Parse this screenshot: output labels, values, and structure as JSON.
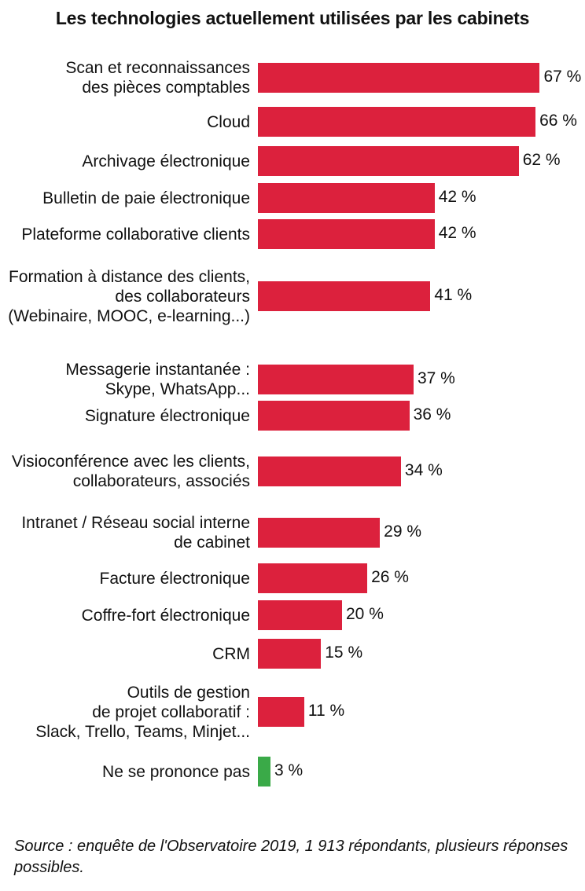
{
  "chart_data": {
    "type": "bar",
    "orientation": "horizontal",
    "title": "Les technologies actuellement utilisées par les cabinets",
    "unit": "%",
    "xlim": [
      0,
      70
    ],
    "grid": false,
    "colors": {
      "default": "#dc213d",
      "highlight": "#3aaa48"
    },
    "categories": [
      {
        "lines": [
          "Scan et reconnaissances",
          "des pièces comptables"
        ],
        "value": 67,
        "label": "67 %",
        "color": "#dc213d"
      },
      {
        "lines": [
          "Cloud"
        ],
        "value": 66,
        "label": "66 %",
        "color": "#dc213d"
      },
      {
        "lines": [
          "Archivage électronique"
        ],
        "value": 62,
        "label": "62 %",
        "color": "#dc213d"
      },
      {
        "lines": [
          "Bulletin de paie électronique"
        ],
        "value": 42,
        "label": "42 %",
        "color": "#dc213d"
      },
      {
        "lines": [
          "Plateforme collaborative clients"
        ],
        "value": 42,
        "label": "42 %",
        "color": "#dc213d"
      },
      {
        "lines": [
          "Formation à distance des clients,",
          "des collaborateurs",
          "(Webinaire, MOOC, e-learning...)"
        ],
        "value": 41,
        "label": "41 %",
        "color": "#dc213d"
      },
      {
        "lines": [
          "Messagerie instantanée :",
          "Skype, WhatsApp..."
        ],
        "value": 37,
        "label": "37 %",
        "color": "#dc213d"
      },
      {
        "lines": [
          "Signature électronique"
        ],
        "value": 36,
        "label": "36 %",
        "color": "#dc213d"
      },
      {
        "lines": [
          "Visioconférence avec les clients,",
          "collaborateurs, associés"
        ],
        "value": 34,
        "label": "34 %",
        "color": "#dc213d"
      },
      {
        "lines": [
          "Intranet / Réseau social interne",
          "de cabinet"
        ],
        "value": 29,
        "label": "29 %",
        "color": "#dc213d"
      },
      {
        "lines": [
          "Facture électronique"
        ],
        "value": 26,
        "label": "26 %",
        "color": "#dc213d"
      },
      {
        "lines": [
          "Coffre-fort électronique"
        ],
        "value": 20,
        "label": "20 %",
        "color": "#dc213d"
      },
      {
        "lines": [
          "CRM"
        ],
        "value": 15,
        "label": "15 %",
        "color": "#dc213d"
      },
      {
        "lines": [
          "Outils de gestion",
          "de projet collaboratif :",
          "Slack, Trello, Teams, Minjet..."
        ],
        "value": 11,
        "label": "11 %",
        "color": "#dc213d"
      },
      {
        "lines": [
          "Ne se prononce pas"
        ],
        "value": 3,
        "label": "3 %",
        "color": "#3aaa48"
      }
    ]
  },
  "source": "Source : enquête de l'Observatoire 2019, 1 913 répondants, plusieurs réponses possibles."
}
